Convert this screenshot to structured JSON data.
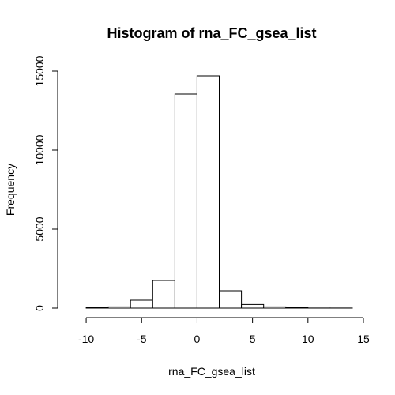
{
  "chart_data": {
    "type": "bar",
    "title": "Histogram of rna_FC_gsea_list",
    "xlabel": "rna_FC_gsea_list",
    "ylabel": "Frequency",
    "bin_edges": [
      -10,
      -8,
      -6,
      -4,
      -2,
      0,
      2,
      4,
      6,
      8,
      10,
      12,
      14
    ],
    "values": [
      30,
      80,
      500,
      1750,
      13550,
      14700,
      1100,
      230,
      80,
      30,
      5,
      3
    ],
    "xlim": [
      -12,
      15
    ],
    "ylim": [
      0,
      15000
    ],
    "xticks": [
      -10,
      -5,
      0,
      5,
      10,
      15
    ],
    "yticks": [
      0,
      5000,
      10000,
      15000
    ],
    "grid": false,
    "colors": {
      "bar_fill": "#ffffff",
      "bar_stroke": "#000000"
    }
  }
}
